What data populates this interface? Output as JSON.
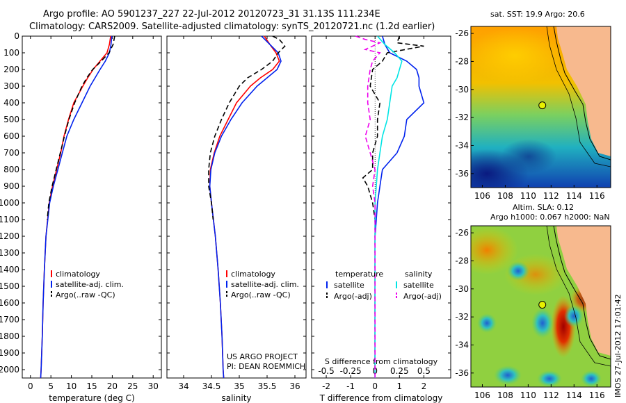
{
  "figure": {
    "title_line1": "Argo profile: AO 5901237_227 22-Jul-2012 20120723_31 31.13S 111.234E",
    "title_line2": "Climatology: CARS2009. Satellite-adjusted climatology: synTS_20120721.nc (1.2d earlier)",
    "credit_line1": "US ARGO PROJECT",
    "credit_line2": "PI: DEAN ROEMMICH",
    "imos_stamp": "IMOS 27-Jul-2012 17:01:42"
  },
  "colors": {
    "red": "#ff0000",
    "blue": "#0022ee",
    "black": "#000000",
    "cyan": "#00e5e5",
    "magenta": "#ee00ee",
    "land": "#f7b98e",
    "contour": "#000000"
  },
  "maps": [
    {
      "name": "sst-map",
      "title_lines": [
        "sat. SST: 19.9 Argo: 20.6"
      ],
      "xticks": [
        106,
        108,
        110,
        112,
        114,
        116
      ],
      "yticks": [
        -26,
        -28,
        -30,
        -32,
        -34,
        -36
      ],
      "xlim": [
        105,
        117.2
      ],
      "ylim": [
        -37,
        -25.5
      ],
      "argo_lon": 111.234,
      "argo_lat": -31.13
    },
    {
      "name": "sla-map",
      "title_lines": [
        "Altim. SLA: 0.12",
        "Argo h1000: 0.067 h2000: NaN"
      ],
      "xticks": [
        106,
        108,
        110,
        112,
        114,
        116
      ],
      "yticks": [
        -26,
        -28,
        -30,
        -32,
        -34,
        -36
      ],
      "xlim": [
        105,
        117.2
      ],
      "ylim": [
        -37,
        -25.5
      ],
      "argo_lon": 111.234,
      "argo_lat": -31.13
    }
  ],
  "chart_data": [
    {
      "name": "temperature-panel",
      "type": "line",
      "xlabel": "temperature (deg C)",
      "xlim": [
        -2,
        32
      ],
      "ylim": [
        2050,
        0
      ],
      "xticks": [
        0,
        5,
        10,
        15,
        20,
        25,
        30
      ],
      "yticks": [
        0,
        100,
        200,
        300,
        400,
        500,
        600,
        700,
        800,
        900,
        1000,
        1100,
        1200,
        1300,
        1400,
        1500,
        1600,
        1700,
        1800,
        1900,
        2000
      ],
      "legend": {
        "placement": "lower-middle",
        "entries": [
          "climatology",
          "satellite-adj. clim.",
          "Argo(..raw -QC)"
        ]
      },
      "series": [
        {
          "name": "climatology",
          "color": "red",
          "dash": "solid",
          "depth": [
            0,
            50,
            100,
            150,
            200,
            250,
            300,
            400,
            500,
            600,
            700,
            800,
            900,
            1000,
            1200,
            1400,
            1600,
            1800,
            2000,
            2050
          ],
          "values": [
            19.6,
            19.3,
            18.7,
            17.0,
            15.3,
            14.0,
            12.8,
            10.6,
            9.3,
            8.2,
            7.4,
            6.4,
            5.4,
            4.6,
            3.8,
            3.4,
            3.1,
            2.9,
            2.6,
            2.5
          ]
        },
        {
          "name": "satellite-adj. clim.",
          "color": "blue",
          "dash": "solid",
          "depth": [
            0,
            50,
            100,
            150,
            200,
            250,
            300,
            400,
            500,
            600,
            700,
            800,
            900,
            1000,
            1200,
            1400,
            1600,
            1800,
            2000,
            2050
          ],
          "values": [
            19.9,
            19.7,
            19.3,
            18.3,
            17.0,
            15.8,
            14.6,
            12.6,
            10.6,
            8.9,
            7.8,
            6.7,
            5.6,
            4.7,
            3.8,
            3.4,
            3.1,
            2.9,
            2.6,
            2.5
          ]
        },
        {
          "name": "Argo(..raw -QC)",
          "color": "black",
          "dash": "dashed",
          "depth": [
            0,
            50,
            100,
            150,
            200,
            250,
            300,
            400,
            500,
            600,
            700,
            800,
            900,
            1000,
            1100
          ],
          "values": [
            20.6,
            20.2,
            19.2,
            17.3,
            15.2,
            13.8,
            12.6,
            10.8,
            9.4,
            8.3,
            7.3,
            6.3,
            5.3,
            4.5,
            4.1
          ]
        }
      ]
    },
    {
      "name": "salinity-panel",
      "type": "line",
      "xlabel": "salinity",
      "xlim": [
        33.7,
        36.2
      ],
      "ylim": [
        2050,
        0
      ],
      "xticks": [
        34,
        34.5,
        35,
        35.5,
        36
      ],
      "legend": {
        "placement": "lower-middle",
        "entries": [
          "climatology",
          "satellite-adj. clim.",
          "Argo(..raw -QC)"
        ]
      },
      "series": [
        {
          "name": "climatology",
          "color": "red",
          "dash": "solid",
          "depth": [
            0,
            50,
            100,
            150,
            200,
            250,
            300,
            400,
            500,
            600,
            700,
            800,
            900,
            1000,
            1200,
            1400,
            1600,
            1800,
            2000,
            2050
          ],
          "values": [
            35.45,
            35.55,
            35.66,
            35.72,
            35.6,
            35.38,
            35.2,
            34.95,
            34.8,
            34.65,
            34.55,
            34.48,
            34.47,
            34.5,
            34.57,
            34.62,
            34.66,
            34.69,
            34.71,
            34.72
          ]
        },
        {
          "name": "satellite-adj. clim.",
          "color": "blue",
          "dash": "solid",
          "depth": [
            0,
            50,
            100,
            150,
            200,
            250,
            300,
            400,
            500,
            600,
            700,
            800,
            900,
            1000,
            1200,
            1400,
            1600,
            1800,
            2000,
            2050
          ],
          "values": [
            35.4,
            35.55,
            35.7,
            35.75,
            35.68,
            35.5,
            35.32,
            35.05,
            34.85,
            34.68,
            34.56,
            34.49,
            34.47,
            34.5,
            34.57,
            34.62,
            34.66,
            34.69,
            34.71,
            34.72
          ]
        },
        {
          "name": "Argo(..raw -QC)",
          "color": "black",
          "dash": "dashed",
          "depth": [
            0,
            20,
            60,
            100,
            150,
            200,
            250,
            300,
            400,
            500,
            600,
            700,
            800,
            900,
            1000,
            1100
          ],
          "values": [
            35.6,
            35.72,
            35.82,
            35.7,
            35.6,
            35.4,
            35.15,
            35.0,
            34.82,
            34.68,
            34.56,
            34.48,
            34.45,
            34.45,
            34.5,
            34.53
          ]
        }
      ]
    },
    {
      "name": "difference-panel",
      "type": "line",
      "xlabel": "T difference from climatology",
      "xlabel_top": "S difference from climatology",
      "xlim": [
        -2.6,
        3.1
      ],
      "ylim": [
        2050,
        0
      ],
      "xticks": [
        -2,
        -1,
        0,
        1,
        2
      ],
      "xticks_top_labels": [
        "-0.5",
        "-0.25",
        "0",
        "0.25",
        "0.5"
      ],
      "xticks_top_positions": [
        -2,
        -1,
        0,
        1,
        2
      ],
      "legend": {
        "placement": "lower-middle",
        "headers": [
          "temperature",
          "salinity"
        ],
        "entries": [
          "satellite",
          "Argo(-adj)",
          "satellite",
          "Argo(-adj)"
        ]
      },
      "series": [
        {
          "name": "satellite",
          "quantity": "temperature",
          "color": "blue",
          "dash": "solid",
          "depth": [
            0,
            50,
            100,
            150,
            200,
            250,
            300,
            400,
            500,
            600,
            700,
            800,
            900,
            1000,
            1100,
            1200,
            2050
          ],
          "values": [
            0.3,
            0.4,
            0.6,
            1.3,
            1.7,
            1.8,
            1.8,
            2.0,
            1.3,
            1.2,
            0.9,
            0.3,
            0.2,
            0.1,
            0.05,
            0,
            0
          ]
        },
        {
          "name": "Argo(-adj)",
          "quantity": "temperature",
          "color": "black",
          "dash": "dashed",
          "depth": [
            0,
            40,
            60,
            100,
            150,
            200,
            300,
            400,
            500,
            600,
            700,
            800,
            850,
            900,
            1000,
            1100,
            2050
          ],
          "values": [
            1.0,
            0.9,
            2.0,
            0.5,
            0.3,
            -0.1,
            -0.2,
            0.2,
            0.1,
            0.1,
            -0.1,
            -0.1,
            -0.5,
            -0.3,
            -0.1,
            0,
            0
          ]
        },
        {
          "name": "satellite",
          "quantity": "salinity",
          "color": "cyan",
          "dash": "solid",
          "depth": [
            0,
            50,
            100,
            150,
            200,
            250,
            300,
            400,
            500,
            600,
            700,
            800,
            900,
            1000,
            2050
          ],
          "values": [
            0.1,
            0.4,
            0.8,
            1.1,
            1.0,
            0.9,
            0.7,
            0.6,
            0.5,
            0.3,
            0.2,
            0.1,
            0.05,
            0,
            0
          ]
        },
        {
          "name": "Argo(-adj)",
          "quantity": "salinity",
          "color": "magenta",
          "dash": "dashed",
          "depth": [
            0,
            20,
            40,
            80,
            100,
            150,
            200,
            300,
            400,
            500,
            600,
            700,
            800,
            900,
            1000,
            2050
          ],
          "values": [
            -0.8,
            -0.4,
            0.2,
            -0.4,
            0.2,
            -0.1,
            -0.2,
            -0.3,
            -0.3,
            -0.2,
            -0.4,
            -0.2,
            0,
            -0.1,
            0,
            0
          ]
        }
      ]
    }
  ]
}
